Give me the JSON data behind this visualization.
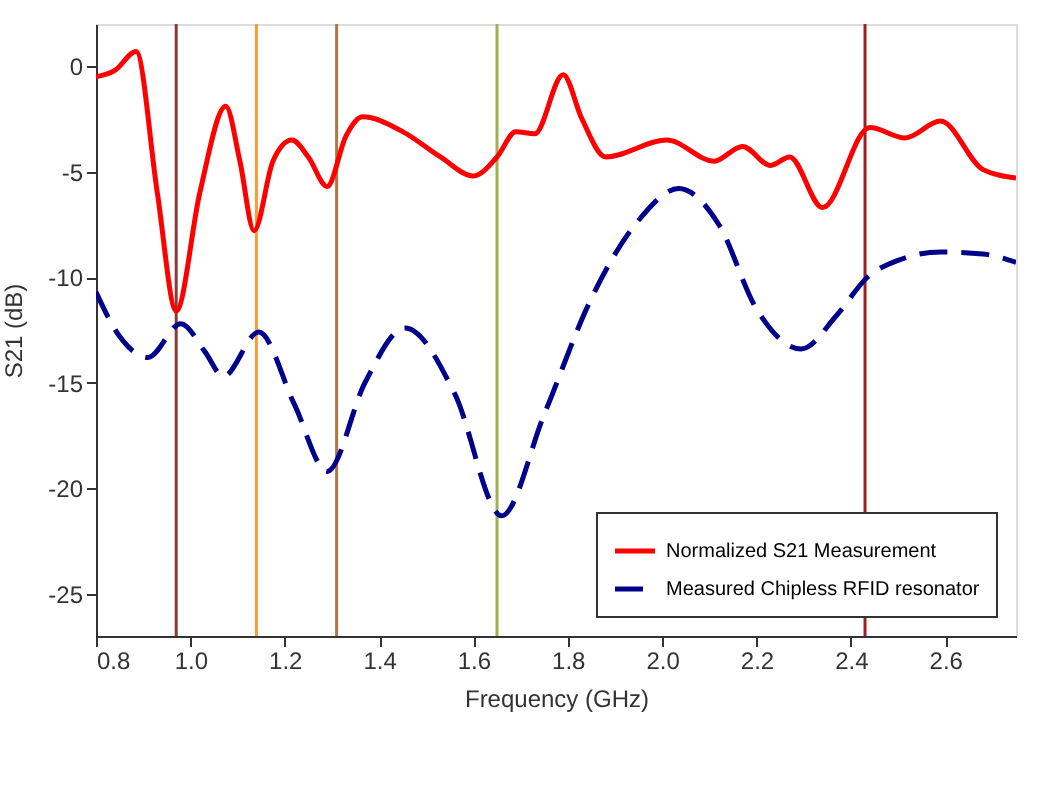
{
  "chart_data": {
    "type": "line",
    "xlabel": "Frequency (GHz)",
    "ylabel": "S21 (dB)",
    "xlim": [
      0.8,
      2.75
    ],
    "ylim": [
      -27,
      2
    ],
    "xticks": [
      {
        "value": 0.8,
        "label": "0.8"
      },
      {
        "value": 1.0,
        "label": "1.0"
      },
      {
        "value": 1.2,
        "label": "1.2"
      },
      {
        "value": 1.4,
        "label": "1.4"
      },
      {
        "value": 1.6,
        "label": "1.6"
      },
      {
        "value": 1.8,
        "label": "1.8"
      },
      {
        "value": 2.0,
        "label": "2.0"
      },
      {
        "value": 2.2,
        "label": "2.2"
      },
      {
        "value": 2.4,
        "label": "2.4"
      },
      {
        "value": 2.6,
        "label": "2.6"
      }
    ],
    "yticks": [
      -25,
      -20,
      -15,
      -10,
      -5,
      0
    ],
    "grid": false,
    "legend": "bottom right",
    "series": [
      {
        "name": "Normalized S21 Measurement",
        "color": "#ff0000",
        "line_style": "solid",
        "x": [
          0.8,
          0.84,
          0.885,
          0.93,
          0.97,
          1.02,
          1.075,
          1.105,
          1.135,
          1.175,
          1.215,
          1.25,
          1.29,
          1.33,
          1.365,
          1.45,
          1.53,
          1.6,
          1.65,
          1.69,
          1.73,
          1.79,
          1.83,
          1.88,
          2.01,
          2.11,
          2.17,
          2.23,
          2.27,
          2.34,
          2.44,
          2.515,
          2.59,
          2.68,
          2.75
        ],
        "values": [
          -0.5,
          -0.2,
          0.7,
          -6.0,
          -11.6,
          -6.0,
          -1.9,
          -4.5,
          -7.8,
          -4.5,
          -3.5,
          -4.3,
          -5.7,
          -3.3,
          -2.4,
          -3.1,
          -4.3,
          -5.2,
          -4.3,
          -3.1,
          -3.2,
          -0.4,
          -2.5,
          -4.3,
          -3.5,
          -4.5,
          -3.8,
          -4.7,
          -4.3,
          -6.7,
          -2.9,
          -3.4,
          -2.6,
          -4.9,
          -5.3
        ]
      },
      {
        "name": "Measured Chipless RFID resonator",
        "color": "#00008b",
        "line_style": "dashed",
        "x": [
          0.8,
          0.85,
          0.91,
          0.98,
          1.03,
          1.07,
          1.145,
          1.22,
          1.29,
          1.37,
          1.455,
          1.56,
          1.66,
          1.75,
          1.85,
          1.95,
          2.035,
          2.12,
          2.2,
          2.295,
          2.37,
          2.435,
          2.5,
          2.59,
          2.68,
          2.75
        ],
        "values": [
          -10.7,
          -12.8,
          -13.8,
          -12.2,
          -13.5,
          -14.7,
          -12.6,
          -16.0,
          -19.2,
          -15.0,
          -12.4,
          -15.5,
          -21.3,
          -16.5,
          -11.0,
          -7.3,
          -5.8,
          -7.5,
          -11.5,
          -13.4,
          -11.8,
          -10.0,
          -9.2,
          -8.8,
          -8.9,
          -9.3
        ]
      }
    ],
    "ref_lines": [
      {
        "axis": "x",
        "value": 0.97,
        "color": "#8b3a3a"
      },
      {
        "axis": "x",
        "value": 1.14,
        "color": "#ff9933"
      },
      {
        "axis": "x",
        "value": 1.31,
        "color": "#b07840"
      },
      {
        "axis": "x",
        "value": 1.65,
        "color": "#a0b050"
      },
      {
        "axis": "x",
        "value": 2.43,
        "color": "#a02020"
      }
    ]
  }
}
